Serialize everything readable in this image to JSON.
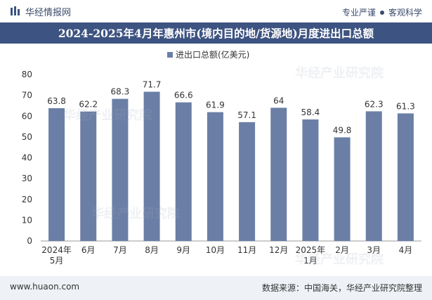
{
  "header": {
    "brand_name": "华经情报网",
    "right_text_1": "专业严谨",
    "right_text_2": "客观科学"
  },
  "title": "2024-2025年4月年惠州市(境内目的地/货源地)月度进出口总额",
  "footer": {
    "website": "www.huaon.com",
    "source": "数据来源：中国海关，华经产业研究院整理"
  },
  "colors": {
    "bar": "#6b7fa6",
    "title_bg": "#3d5381",
    "footer_bg": "#eef1f6"
  },
  "chart_data": {
    "type": "bar",
    "title": "2024-2025年4月年惠州市(境内目的地/货源地)月度进出口总额",
    "legend": [
      "进出口总额(亿美元)"
    ],
    "legend_position": "top-center",
    "categories": [
      "2024年\n5月",
      "6月",
      "7月",
      "8月",
      "9月",
      "10月",
      "11月",
      "12月",
      "2025年\n1月",
      "2月",
      "3月",
      "4月"
    ],
    "values": [
      63.8,
      62.2,
      68.3,
      71.7,
      66.6,
      61.9,
      57.1,
      64,
      58.4,
      49.8,
      62.3,
      61.3
    ],
    "value_labels": [
      "63.8",
      "62.2",
      "68.3",
      "71.7",
      "66.6",
      "61.9",
      "57.1",
      "64",
      "58.4",
      "49.8",
      "62.3",
      "61.3"
    ],
    "ylim": [
      0,
      80
    ],
    "yticks": [
      0,
      10,
      20,
      30,
      40,
      50,
      60,
      70,
      80
    ],
    "xlabel": "",
    "ylabel": "",
    "grid": false
  }
}
